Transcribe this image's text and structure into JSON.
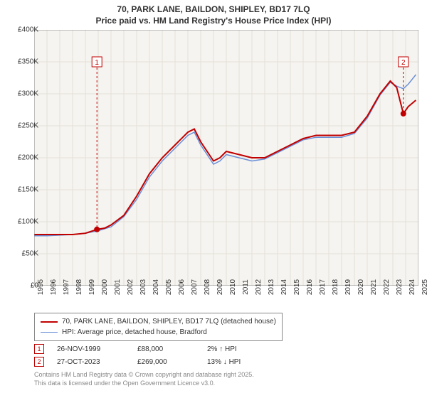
{
  "title_line1": "70, PARK LANE, BAILDON, SHIPLEY, BD17 7LQ",
  "title_line2": "Price paid vs. HM Land Registry's House Price Index (HPI)",
  "chart": {
    "type": "line",
    "plot_bg": "#f6f4f0",
    "grid_color": "#e4e0d8",
    "border_color": "#888888",
    "ylim": [
      0,
      400000
    ],
    "ytick_step": 50000,
    "y_labels": [
      "£0",
      "£50K",
      "£100K",
      "£150K",
      "£200K",
      "£250K",
      "£300K",
      "£350K",
      "£400K"
    ],
    "xlim": [
      1995,
      2025
    ],
    "x_labels": [
      "1995",
      "1996",
      "1997",
      "1998",
      "1999",
      "2000",
      "2001",
      "2002",
      "2003",
      "2004",
      "2005",
      "2006",
      "2007",
      "2008",
      "2009",
      "2010",
      "2011",
      "2012",
      "2013",
      "2014",
      "2015",
      "2016",
      "2017",
      "2018",
      "2019",
      "2020",
      "2021",
      "2022",
      "2023",
      "2024",
      "2025"
    ],
    "series": [
      {
        "name": "price_paid",
        "color": "#c00000",
        "width": 2,
        "points": [
          [
            1995,
            80000
          ],
          [
            1996,
            80000
          ],
          [
            1997,
            80000
          ],
          [
            1998,
            80000
          ],
          [
            1999,
            82000
          ],
          [
            1999.9,
            88000
          ],
          [
            2000.5,
            90000
          ],
          [
            2001,
            95000
          ],
          [
            2002,
            110000
          ],
          [
            2003,
            140000
          ],
          [
            2004,
            175000
          ],
          [
            2005,
            200000
          ],
          [
            2006,
            220000
          ],
          [
            2007,
            240000
          ],
          [
            2007.5,
            245000
          ],
          [
            2008,
            225000
          ],
          [
            2009,
            195000
          ],
          [
            2009.5,
            200000
          ],
          [
            2010,
            210000
          ],
          [
            2011,
            205000
          ],
          [
            2012,
            200000
          ],
          [
            2013,
            200000
          ],
          [
            2014,
            210000
          ],
          [
            2015,
            220000
          ],
          [
            2016,
            230000
          ],
          [
            2017,
            235000
          ],
          [
            2018,
            235000
          ],
          [
            2019,
            235000
          ],
          [
            2020,
            240000
          ],
          [
            2021,
            265000
          ],
          [
            2022,
            300000
          ],
          [
            2022.8,
            320000
          ],
          [
            2023.3,
            310000
          ],
          [
            2023.82,
            269000
          ],
          [
            2024.2,
            280000
          ],
          [
            2024.8,
            290000
          ]
        ]
      },
      {
        "name": "hpi",
        "color": "#6a8fd8",
        "width": 1.5,
        "points": [
          [
            1995,
            78000
          ],
          [
            1996,
            78000
          ],
          [
            1997,
            79000
          ],
          [
            1998,
            80000
          ],
          [
            1999,
            82000
          ],
          [
            2000,
            86000
          ],
          [
            2001,
            92000
          ],
          [
            2002,
            108000
          ],
          [
            2003,
            135000
          ],
          [
            2004,
            170000
          ],
          [
            2005,
            195000
          ],
          [
            2006,
            215000
          ],
          [
            2007,
            235000
          ],
          [
            2007.5,
            240000
          ],
          [
            2008,
            220000
          ],
          [
            2009,
            190000
          ],
          [
            2009.5,
            195000
          ],
          [
            2010,
            205000
          ],
          [
            2011,
            200000
          ],
          [
            2012,
            195000
          ],
          [
            2013,
            198000
          ],
          [
            2014,
            208000
          ],
          [
            2015,
            218000
          ],
          [
            2016,
            228000
          ],
          [
            2017,
            232000
          ],
          [
            2018,
            232000
          ],
          [
            2019,
            232000
          ],
          [
            2020,
            238000
          ],
          [
            2021,
            262000
          ],
          [
            2022,
            298000
          ],
          [
            2022.8,
            318000
          ],
          [
            2023.3,
            312000
          ],
          [
            2023.82,
            308000
          ],
          [
            2024.2,
            315000
          ],
          [
            2024.8,
            330000
          ]
        ]
      }
    ],
    "markers": [
      {
        "label": "1",
        "x": 1999.9,
        "y": 88000,
        "box_y": 350000,
        "color": "#c00000"
      },
      {
        "label": "2",
        "x": 2023.82,
        "y": 269000,
        "box_y": 350000,
        "color": "#c00000"
      }
    ]
  },
  "legend": {
    "items": [
      {
        "color": "#c00000",
        "width": 2,
        "label": "70, PARK LANE, BAILDON, SHIPLEY, BD17 7LQ (detached house)"
      },
      {
        "color": "#6a8fd8",
        "width": 1.5,
        "label": "HPI: Average price, detached house, Bradford"
      }
    ]
  },
  "events": [
    {
      "marker": "1",
      "date": "26-NOV-1999",
      "price": "£88,000",
      "pct": "2% ↑ HPI"
    },
    {
      "marker": "2",
      "date": "27-OCT-2023",
      "price": "£269,000",
      "pct": "13% ↓ HPI"
    }
  ],
  "copyright_line1": "Contains HM Land Registry data © Crown copyright and database right 2025.",
  "copyright_line2": "This data is licensed under the Open Government Licence v3.0."
}
